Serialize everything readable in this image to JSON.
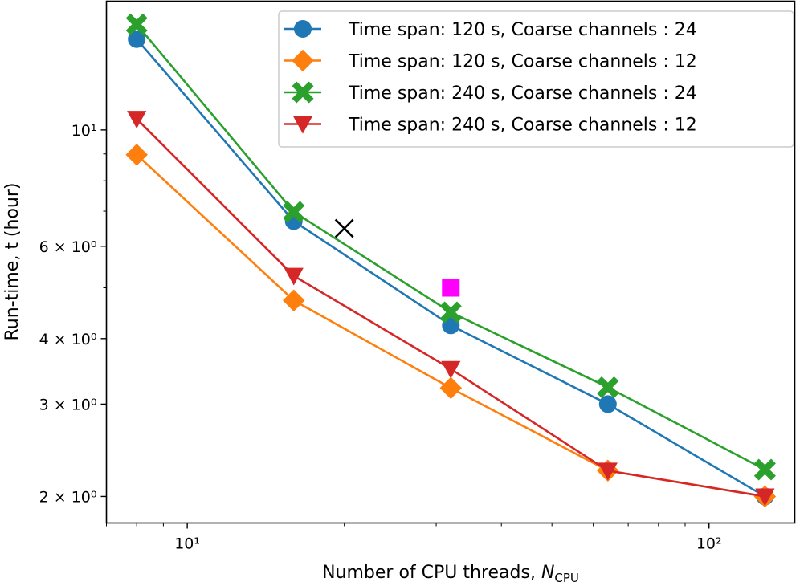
{
  "chart_data": {
    "type": "line",
    "xscale": "log",
    "yscale": "log",
    "xlim": [
      7.0,
      146
    ],
    "ylim": [
      1.78,
      17.6
    ],
    "grid": false,
    "legend_placement": "top-right",
    "xlabel": {
      "text": "Number of CPU threads, ",
      "symbol": "N",
      "subscript": "CPU"
    },
    "ylabel": "Run-time, t (hour)",
    "x_ticks": [
      {
        "value": 10,
        "label": "10¹"
      },
      {
        "value": 100,
        "label": "10²"
      }
    ],
    "x_minor_ticks": [
      7,
      8,
      9,
      20,
      30,
      40,
      50,
      60,
      70,
      80,
      90
    ],
    "y_ticks": [
      {
        "value": 10,
        "label": "10¹"
      },
      {
        "value": 6,
        "label": "6 × 10⁰"
      },
      {
        "value": 4,
        "label": "4 × 10⁰"
      },
      {
        "value": 3,
        "label": "3 × 10⁰"
      },
      {
        "value": 2,
        "label": "2 × 10⁰"
      }
    ],
    "y_minor_ticks": [
      5,
      7,
      8,
      9
    ],
    "x": [
      8,
      16,
      32,
      64,
      128
    ],
    "series": [
      {
        "name": "Time span: 120 s, Coarse channels : 24",
        "color": "#1f77b4",
        "marker": "circle",
        "values": [
          14.9,
          6.7,
          4.24,
          3.0,
          2.0
        ]
      },
      {
        "name": "Time span: 120 s, Coarse channels : 12",
        "color": "#ff7f0e",
        "marker": "diamond",
        "values": [
          8.97,
          4.73,
          3.22,
          2.24,
          2.0
        ]
      },
      {
        "name": "Time span: 240 s, Coarse channels : 24",
        "color": "#2ca02c",
        "marker": "x-filled",
        "values": [
          15.9,
          6.98,
          4.49,
          3.23,
          2.25
        ]
      },
      {
        "name": "Time span: 240 s, Coarse channels : 12",
        "color": "#d62728",
        "marker": "triangle-down",
        "values": [
          10.5,
          5.27,
          3.5,
          2.24,
          2.0
        ]
      }
    ],
    "extra_points": [
      {
        "x": 20,
        "y": 6.49,
        "marker": "x",
        "color": "#000000"
      },
      {
        "x": 32,
        "y": 5.0,
        "marker": "square",
        "color": "#ff00ff"
      }
    ]
  }
}
